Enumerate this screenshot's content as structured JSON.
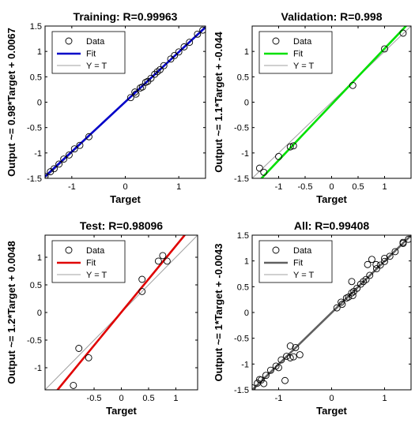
{
  "chart_data": [
    {
      "type": "scatter",
      "title": "Training: R=0.99963",
      "xlabel": "Target",
      "ylabel": "Output ~= 0.98*Target + 0.0067",
      "xlim": [
        -1.5,
        1.5
      ],
      "ylim": [
        -1.5,
        1.5
      ],
      "xticks": [
        -1,
        0,
        1
      ],
      "yticks": [
        -1.5,
        -1,
        -0.5,
        0,
        0.5,
        1,
        1.5
      ],
      "fit_color": "#0000c8",
      "fit": {
        "slope": 0.98,
        "intercept": 0.0067
      },
      "legend": [
        "Data",
        "Fit",
        "Y = T"
      ],
      "legend_position": "top-left",
      "points": [
        [
          -1.5,
          -1.46
        ],
        [
          -1.4,
          -1.37
        ],
        [
          -1.33,
          -1.31
        ],
        [
          -1.24,
          -1.22
        ],
        [
          -1.15,
          -1.12
        ],
        [
          -1.05,
          -1.04
        ],
        [
          -0.95,
          -0.92
        ],
        [
          -0.85,
          -0.85
        ],
        [
          -0.68,
          -0.68
        ],
        [
          0.1,
          0.09
        ],
        [
          0.18,
          0.2
        ],
        [
          0.2,
          0.16
        ],
        [
          0.28,
          0.28
        ],
        [
          0.32,
          0.3
        ],
        [
          0.38,
          0.39
        ],
        [
          0.42,
          0.41
        ],
        [
          0.48,
          0.47
        ],
        [
          0.55,
          0.55
        ],
        [
          0.6,
          0.6
        ],
        [
          0.65,
          0.64
        ],
        [
          0.72,
          0.72
        ],
        [
          0.85,
          0.85
        ],
        [
          0.92,
          0.92
        ],
        [
          1.0,
          0.99
        ],
        [
          1.1,
          1.09
        ],
        [
          1.2,
          1.18
        ],
        [
          1.35,
          1.34
        ],
        [
          1.45,
          1.42
        ]
      ]
    },
    {
      "type": "scatter",
      "title": "Validation: R=0.998",
      "xlabel": "Target",
      "ylabel": "Output ~= 1.1*Target + -0.044",
      "xlim": [
        -1.5,
        1.5
      ],
      "ylim": [
        -1.5,
        1.5
      ],
      "xticks": [
        -1,
        -0.5,
        0,
        0.5,
        1
      ],
      "yticks": [
        -1.5,
        -1,
        -0.5,
        0,
        0.5,
        1
      ],
      "fit_color": "#00e000",
      "fit": {
        "slope": 1.1,
        "intercept": -0.044
      },
      "legend": [
        "Data",
        "Fit",
        "Y = T"
      ],
      "legend_position": "top-left",
      "points": [
        [
          -1.36,
          -1.3
        ],
        [
          -1.28,
          -1.38
        ],
        [
          -1.0,
          -1.07
        ],
        [
          -0.78,
          -0.88
        ],
        [
          -0.72,
          -0.86
        ],
        [
          0.4,
          0.33
        ],
        [
          1.0,
          1.05
        ],
        [
          1.35,
          1.36
        ]
      ]
    },
    {
      "type": "scatter",
      "title": "Test: R=0.98096",
      "xlabel": "Target",
      "ylabel": "Output ~= 1.2*Target + 0.0048",
      "xlim": [
        -1.4,
        1.4
      ],
      "ylim": [
        -1.4,
        1.4
      ],
      "xticks": [
        -0.5,
        0,
        0.5,
        1
      ],
      "yticks": [
        -1,
        -0.5,
        0,
        0.5,
        1
      ],
      "fit_color": "#e00000",
      "fit": {
        "slope": 1.2,
        "intercept": 0.0048
      },
      "legend": [
        "Data",
        "Fit",
        "Y = T"
      ],
      "legend_position": "top-left",
      "points": [
        [
          -0.88,
          -1.32
        ],
        [
          -0.78,
          -0.65
        ],
        [
          -0.6,
          -0.82
        ],
        [
          0.38,
          0.6
        ],
        [
          0.38,
          0.38
        ],
        [
          0.68,
          0.93
        ],
        [
          0.76,
          1.03
        ],
        [
          0.84,
          0.93
        ]
      ]
    },
    {
      "type": "scatter",
      "title": "All: R=0.99408",
      "xlabel": "Target",
      "ylabel": "Output ~= 1*Target + -0.0043",
      "xlim": [
        -1.5,
        1.5
      ],
      "ylim": [
        -1.5,
        1.5
      ],
      "xticks": [
        -1,
        0,
        1
      ],
      "yticks": [
        -1.5,
        -1,
        -0.5,
        0,
        0.5,
        1,
        1.5
      ],
      "fit_color": "#606060",
      "fit": {
        "slope": 1.0,
        "intercept": -0.0043
      },
      "legend": [
        "Data",
        "Fit",
        "Y = T"
      ],
      "legend_position": "top-left",
      "points": [
        [
          -1.5,
          -1.46
        ],
        [
          -1.4,
          -1.37
        ],
        [
          -1.36,
          -1.3
        ],
        [
          -1.33,
          -1.31
        ],
        [
          -1.28,
          -1.38
        ],
        [
          -1.24,
          -1.22
        ],
        [
          -1.15,
          -1.12
        ],
        [
          -1.05,
          -1.04
        ],
        [
          -1.0,
          -1.07
        ],
        [
          -0.95,
          -0.92
        ],
        [
          -0.88,
          -1.32
        ],
        [
          -0.85,
          -0.85
        ],
        [
          -0.78,
          -0.65
        ],
        [
          -0.78,
          -0.88
        ],
        [
          -0.72,
          -0.86
        ],
        [
          -0.68,
          -0.68
        ],
        [
          -0.6,
          -0.82
        ],
        [
          0.1,
          0.09
        ],
        [
          0.18,
          0.2
        ],
        [
          0.2,
          0.16
        ],
        [
          0.28,
          0.28
        ],
        [
          0.32,
          0.3
        ],
        [
          0.38,
          0.6
        ],
        [
          0.38,
          0.38
        ],
        [
          0.4,
          0.33
        ],
        [
          0.42,
          0.41
        ],
        [
          0.48,
          0.47
        ],
        [
          0.55,
          0.55
        ],
        [
          0.6,
          0.6
        ],
        [
          0.65,
          0.64
        ],
        [
          0.68,
          0.93
        ],
        [
          0.72,
          0.72
        ],
        [
          0.76,
          1.03
        ],
        [
          0.84,
          0.93
        ],
        [
          0.85,
          0.85
        ],
        [
          0.92,
          0.92
        ],
        [
          1.0,
          0.99
        ],
        [
          1.0,
          1.05
        ],
        [
          1.1,
          1.09
        ],
        [
          1.2,
          1.18
        ],
        [
          1.35,
          1.34
        ],
        [
          1.35,
          1.36
        ],
        [
          1.45,
          1.42
        ]
      ]
    }
  ]
}
